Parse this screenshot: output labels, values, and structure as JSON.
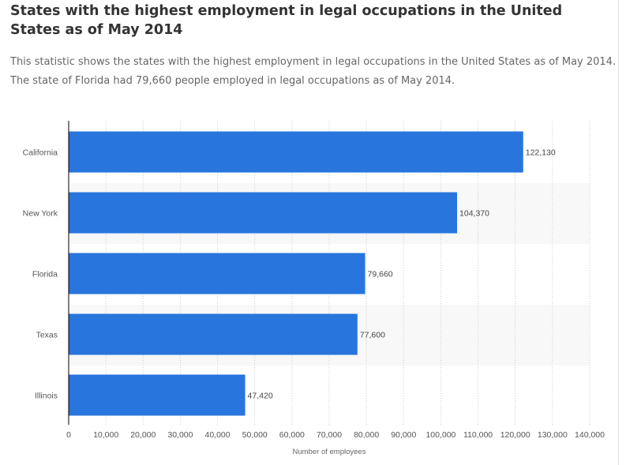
{
  "title": "States with the highest employment in legal occupations in the United States as of May 2014",
  "description": [
    "This statistic shows the states with the highest employment in legal occupations in the United States as of May 2014.",
    "The state of Florida had 79,660 people employed in legal occupations as of May 2014."
  ],
  "chart_data": {
    "type": "bar",
    "orientation": "horizontal",
    "categories": [
      "California",
      "New York",
      "Florida",
      "Texas",
      "Illinois"
    ],
    "values": [
      122130,
      104370,
      79660,
      77600,
      47420
    ],
    "value_labels": [
      "122,130",
      "104,370",
      "79,660",
      "77,600",
      "47,420"
    ],
    "xlabel": "Number of employees",
    "ylabel": "",
    "xlim": [
      0,
      140000
    ],
    "xticks": [
      "0",
      "10,000",
      "20,000",
      "30,000",
      "40,000",
      "50,000",
      "60,000",
      "70,000",
      "80,000",
      "90,000",
      "100,000",
      "110,000",
      "120,000",
      "130,000",
      "140,000"
    ],
    "grid": "vertical dotted",
    "bar_color": "#2876dd"
  }
}
